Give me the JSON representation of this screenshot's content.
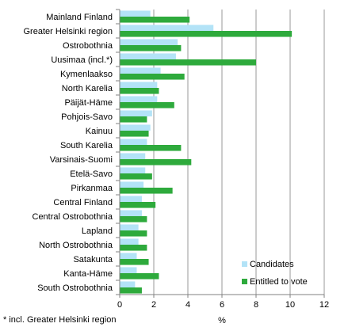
{
  "chart_data": {
    "type": "bar",
    "orientation": "horizontal",
    "categories": [
      "Mainland Finland",
      "Greater Helsinki region",
      "Ostrobothnia",
      "Uusimaa (incl.*)",
      "Kymenlaakso",
      "North Karelia",
      "Päijät-Häme",
      "Pohjois-Savo",
      "Kainuu",
      "South Karelia",
      "Varsinais-Suomi",
      "Etelä-Savo",
      "Pirkanmaa",
      "Central Finland",
      "Central Ostrobothnia",
      "Lapland",
      "North Ostrobothnia",
      "Satakunta",
      "Kanta-Häme",
      "South Ostrobothnia"
    ],
    "series": [
      {
        "name": "Candidates",
        "color": "#b3e3f7",
        "values": [
          1.8,
          5.5,
          3.4,
          3.3,
          2.4,
          2.2,
          2.2,
          1.9,
          1.8,
          1.6,
          1.5,
          1.5,
          1.4,
          1.3,
          1.3,
          1.1,
          1.1,
          1.0,
          1.0,
          0.9
        ]
      },
      {
        "name": "Entitled to vote",
        "color": "#2eaa3c",
        "values": [
          4.1,
          10.1,
          3.6,
          8.0,
          3.8,
          2.3,
          3.2,
          1.6,
          1.7,
          3.6,
          4.2,
          1.9,
          3.1,
          2.1,
          1.6,
          1.6,
          1.6,
          1.7,
          2.3,
          1.3
        ]
      }
    ],
    "xlim": [
      0,
      12
    ],
    "xticks": [
      "0",
      "2",
      "4",
      "6",
      "8",
      "10",
      "12"
    ],
    "xlabel": "%",
    "ylabel": "",
    "title": "",
    "grid": "vertical",
    "legend_position": "bottom-right",
    "axis_color": "#808080",
    "grid_color": "#808080"
  },
  "footnote": "* incl. Greater Helsinki region"
}
